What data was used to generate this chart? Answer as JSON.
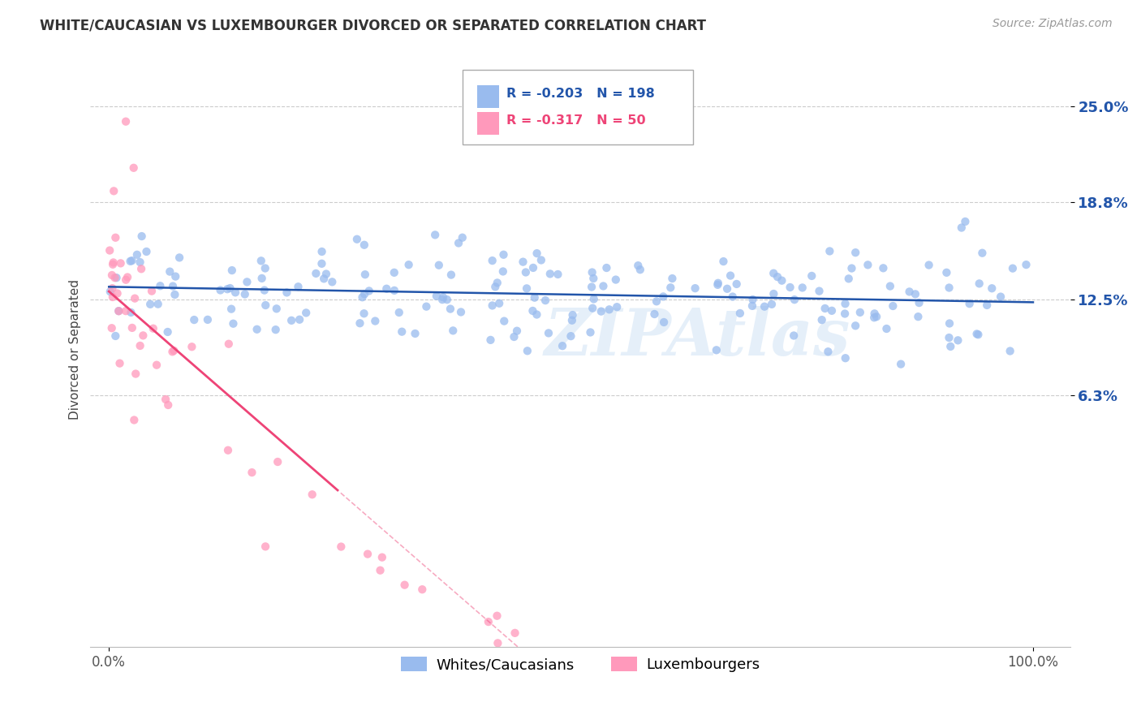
{
  "title": "WHITE/CAUCASIAN VS LUXEMBOURGER DIVORCED OR SEPARATED CORRELATION CHART",
  "source": "Source: ZipAtlas.com",
  "ylabel": "Divorced or Separated",
  "watermark": "ZIPAtlas",
  "legend_blue_r": "-0.203",
  "legend_blue_n": "198",
  "legend_pink_r": "-0.317",
  "legend_pink_n": "50",
  "blue_dot_color": "#99BBEE",
  "pink_dot_color": "#FF99BB",
  "blue_line_color": "#2255AA",
  "pink_line_color": "#EE4477",
  "ytick_labels": [
    "6.3%",
    "12.5%",
    "18.8%",
    "25.0%"
  ],
  "ytick_values": [
    0.063,
    0.125,
    0.188,
    0.25
  ],
  "xtick_labels": [
    "0.0%",
    "100.0%"
  ],
  "xtick_values": [
    0.0,
    1.0
  ],
  "xlim": [
    -0.02,
    1.04
  ],
  "ylim": [
    -0.1,
    0.285
  ],
  "blue_slope": -0.01,
  "blue_intercept": 0.133,
  "pink_slope": -0.52,
  "pink_intercept": 0.13,
  "background_color": "#FFFFFF",
  "grid_color": "#CCCCCC",
  "legend_label_blue": "Whites/Caucasians",
  "legend_label_pink": "Luxembourgers"
}
